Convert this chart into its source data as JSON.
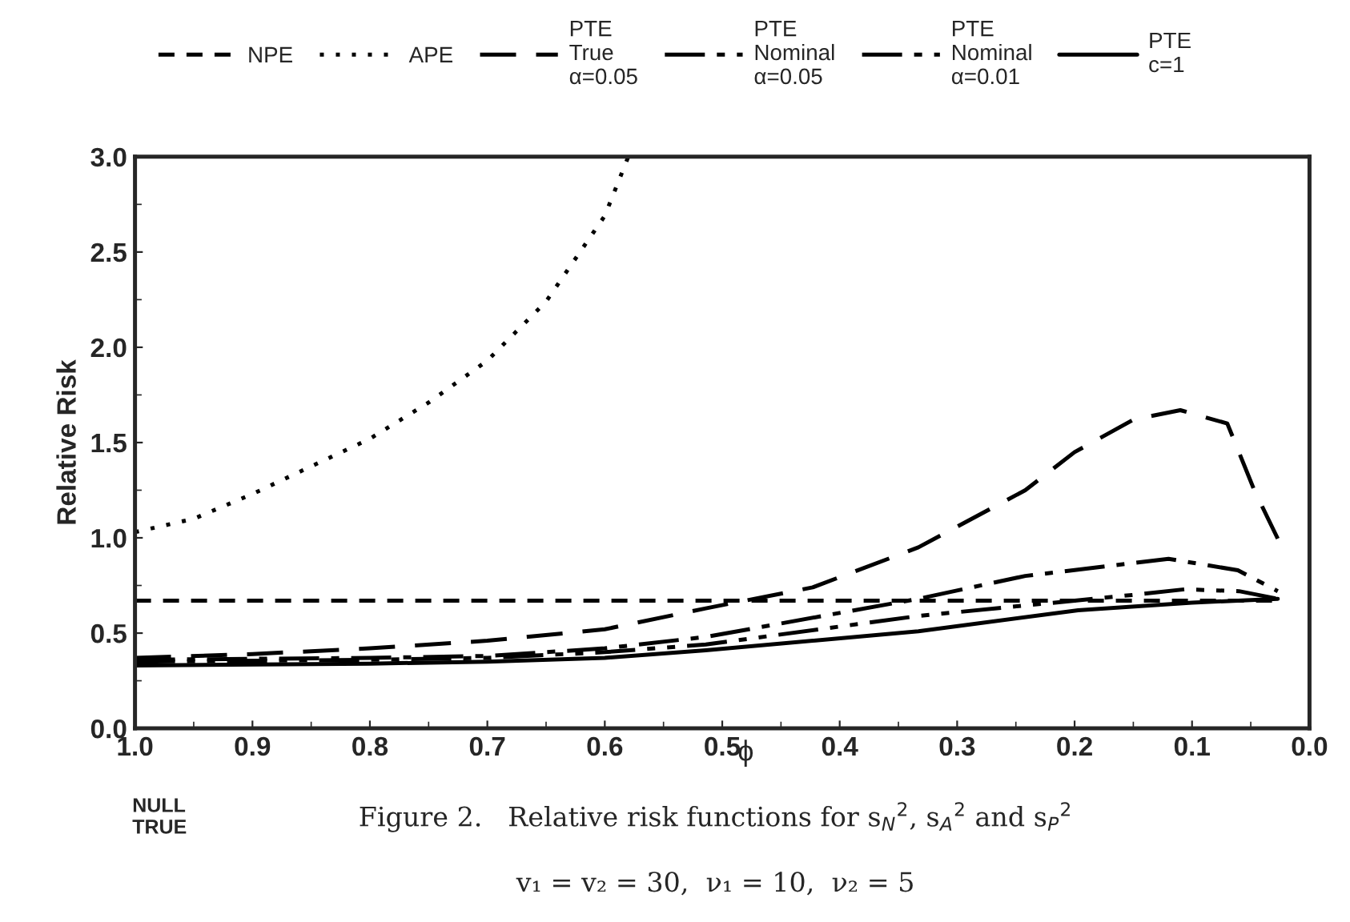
{
  "chart_data": {
    "type": "line",
    "ylabel": "Relative Risk",
    "xlabel": "ϕ",
    "xlim": [
      1.0,
      0.0
    ],
    "ylim": [
      0.0,
      3.0
    ],
    "xticks": [
      {
        "value": 1,
        "label": "1.0"
      },
      0.9,
      0.8,
      0.7,
      0.6,
      0.5,
      0.4,
      0.3,
      0.2,
      0.1,
      {
        "value": 0,
        "label": "0.0"
      }
    ],
    "yticks": [
      {
        "value": 0,
        "label": "0.0"
      },
      0.5,
      {
        "value": 1,
        "label": "1.0"
      },
      1.5,
      {
        "value": 2,
        "label": "2.0"
      },
      2.5,
      {
        "value": 3,
        "label": "3.0"
      }
    ],
    "grid": false,
    "legend": "top",
    "marker": "none",
    "series": [
      {
        "name": "NPE",
        "color": "#000000",
        "line_style": "dashed",
        "x": [
          1.0,
          0.5,
          0.025
        ],
        "values": [
          0.67,
          0.67,
          0.67
        ]
      },
      {
        "name": "APE",
        "color": "#000000",
        "line_style": "dotted",
        "x": [
          1.0,
          0.95,
          0.9,
          0.8,
          0.75,
          0.7,
          0.65,
          0.6,
          0.58
        ],
        "values": [
          1.03,
          1.1,
          1.23,
          1.52,
          1.71,
          1.93,
          2.24,
          2.69,
          3.0
        ]
      },
      {
        "name": "PTE\nTrue\nα=0.05",
        "color": "#000000",
        "line_style": "longdash",
        "x": [
          1.0,
          0.9,
          0.8,
          0.7,
          0.6,
          0.514,
          0.423,
          0.333,
          0.242,
          0.2,
          0.15,
          0.11,
          0.07,
          0.047,
          0.025
        ],
        "values": [
          0.37,
          0.39,
          0.42,
          0.46,
          0.52,
          0.63,
          0.74,
          0.95,
          1.25,
          1.45,
          1.62,
          1.67,
          1.6,
          1.25,
          0.97
        ]
      },
      {
        "name": "PTE\nNominal\nα=0.05",
        "color": "#000000",
        "line_style": "dashdotdot",
        "x": [
          1.0,
          0.8,
          0.7,
          0.6,
          0.514,
          0.333,
          0.151,
          0.106,
          0.06,
          0.027
        ],
        "values": [
          0.35,
          0.36,
          0.37,
          0.4,
          0.44,
          0.59,
          0.7,
          0.73,
          0.72,
          0.68
        ]
      },
      {
        "name": "PTE\nNominal\nα=0.01",
        "color": "#000000",
        "line_style": "dashdot",
        "x": [
          1.0,
          0.8,
          0.7,
          0.6,
          0.514,
          0.333,
          0.242,
          0.12,
          0.061,
          0.027
        ],
        "values": [
          0.36,
          0.37,
          0.38,
          0.42,
          0.48,
          0.68,
          0.8,
          0.89,
          0.83,
          0.72
        ]
      },
      {
        "name": "PTE\nc=1",
        "color": "#000000",
        "line_style": "solid",
        "x": [
          1.0,
          0.8,
          0.7,
          0.6,
          0.514,
          0.333,
          0.197,
          0.1,
          0.027
        ],
        "values": [
          0.33,
          0.34,
          0.35,
          0.37,
          0.41,
          0.51,
          0.62,
          0.66,
          0.68
        ]
      }
    ],
    "annotations": [
      "NULL\nTRUE",
      "Figure 2.   Relative risk functions for s$_{N}$$^{2}$, s$_{A}$$^{2}$ and s$_{P}$$^{2}$",
      "v₁ = v₂ = 30,  ν₁ = 10,  ν₂ = 5"
    ]
  }
}
